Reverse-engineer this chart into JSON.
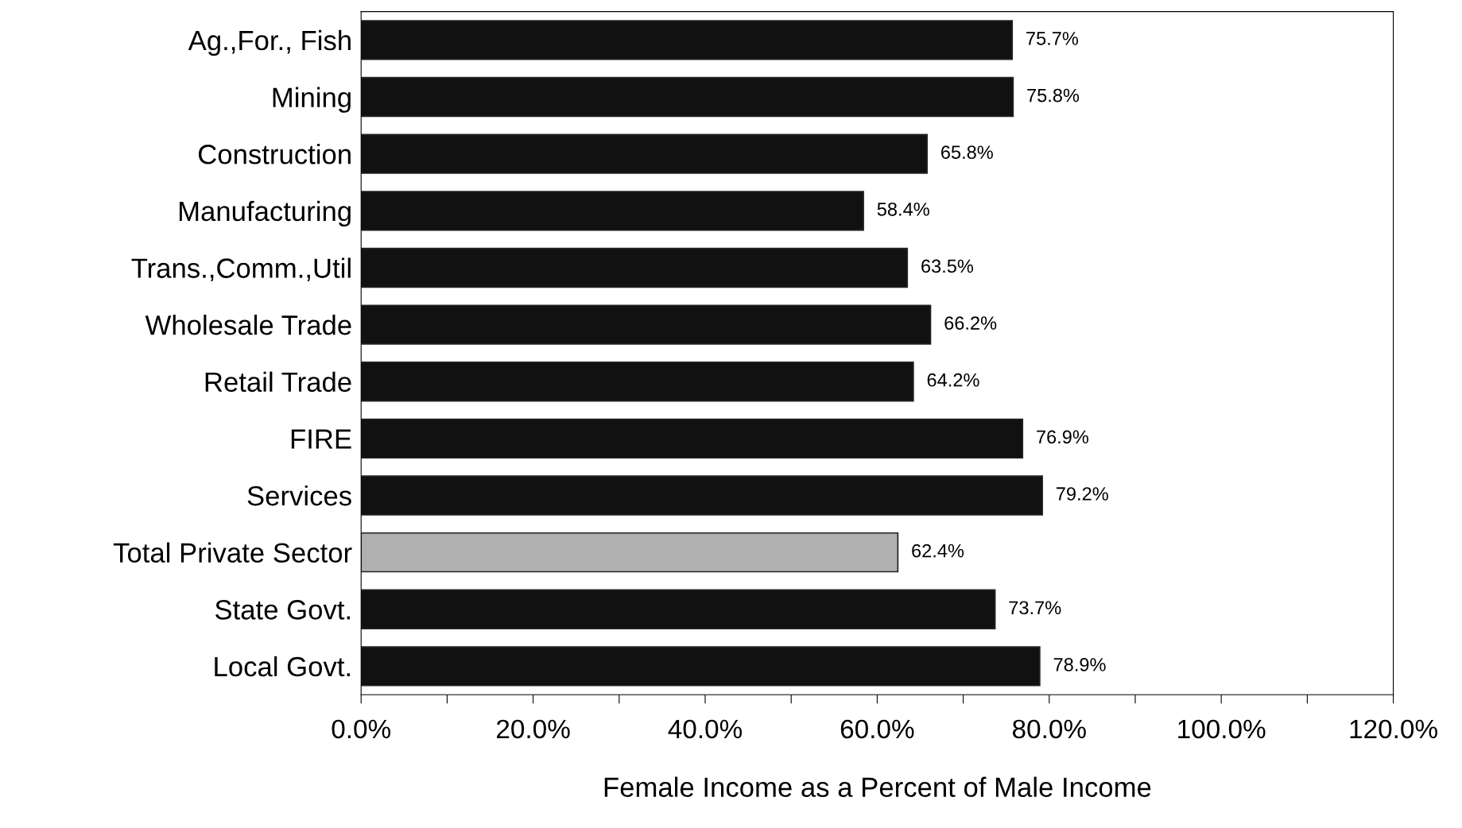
{
  "chart_data": {
    "type": "bar",
    "orientation": "horizontal",
    "xlabel": "Female Income as a Percent of Male Income",
    "categories": [
      "Ag.,For., Fish",
      "Mining",
      "Construction",
      "Manufacturing",
      "Trans.,Comm.,Util",
      "Wholesale Trade",
      "Retail Trade",
      "FIRE",
      "Services",
      "Total Private Sector",
      "State Govt.",
      "Local Govt."
    ],
    "values": [
      75.7,
      75.8,
      65.8,
      58.4,
      63.5,
      66.2,
      64.2,
      76.9,
      79.2,
      62.4,
      73.7,
      78.9
    ],
    "value_labels": [
      "75.7%",
      "75.8%",
      "65.8%",
      "58.4%",
      "63.5%",
      "66.2%",
      "64.2%",
      "76.9%",
      "79.2%",
      "62.4%",
      "73.7%",
      "78.9%"
    ],
    "colors": [
      "#111111",
      "#111111",
      "#111111",
      "#111111",
      "#111111",
      "#111111",
      "#111111",
      "#111111",
      "#111111",
      "#b0b0b0",
      "#111111",
      "#111111"
    ],
    "xlim": [
      0,
      120
    ],
    "xticks": [
      {
        "value": 0,
        "label": "0.0%"
      },
      {
        "value": 10,
        "label": null
      },
      {
        "value": 20,
        "label": "20.0%"
      },
      {
        "value": 30,
        "label": null
      },
      {
        "value": 40,
        "label": "40.0%"
      },
      {
        "value": 50,
        "label": null
      },
      {
        "value": 60,
        "label": "60.0%"
      },
      {
        "value": 70,
        "label": null
      },
      {
        "value": 80,
        "label": "80.0%"
      },
      {
        "value": 90,
        "label": null
      },
      {
        "value": 100,
        "label": "100.0%"
      },
      {
        "value": 110,
        "label": null
      },
      {
        "value": 120,
        "label": "120.0%"
      }
    ],
    "grid": false
  }
}
